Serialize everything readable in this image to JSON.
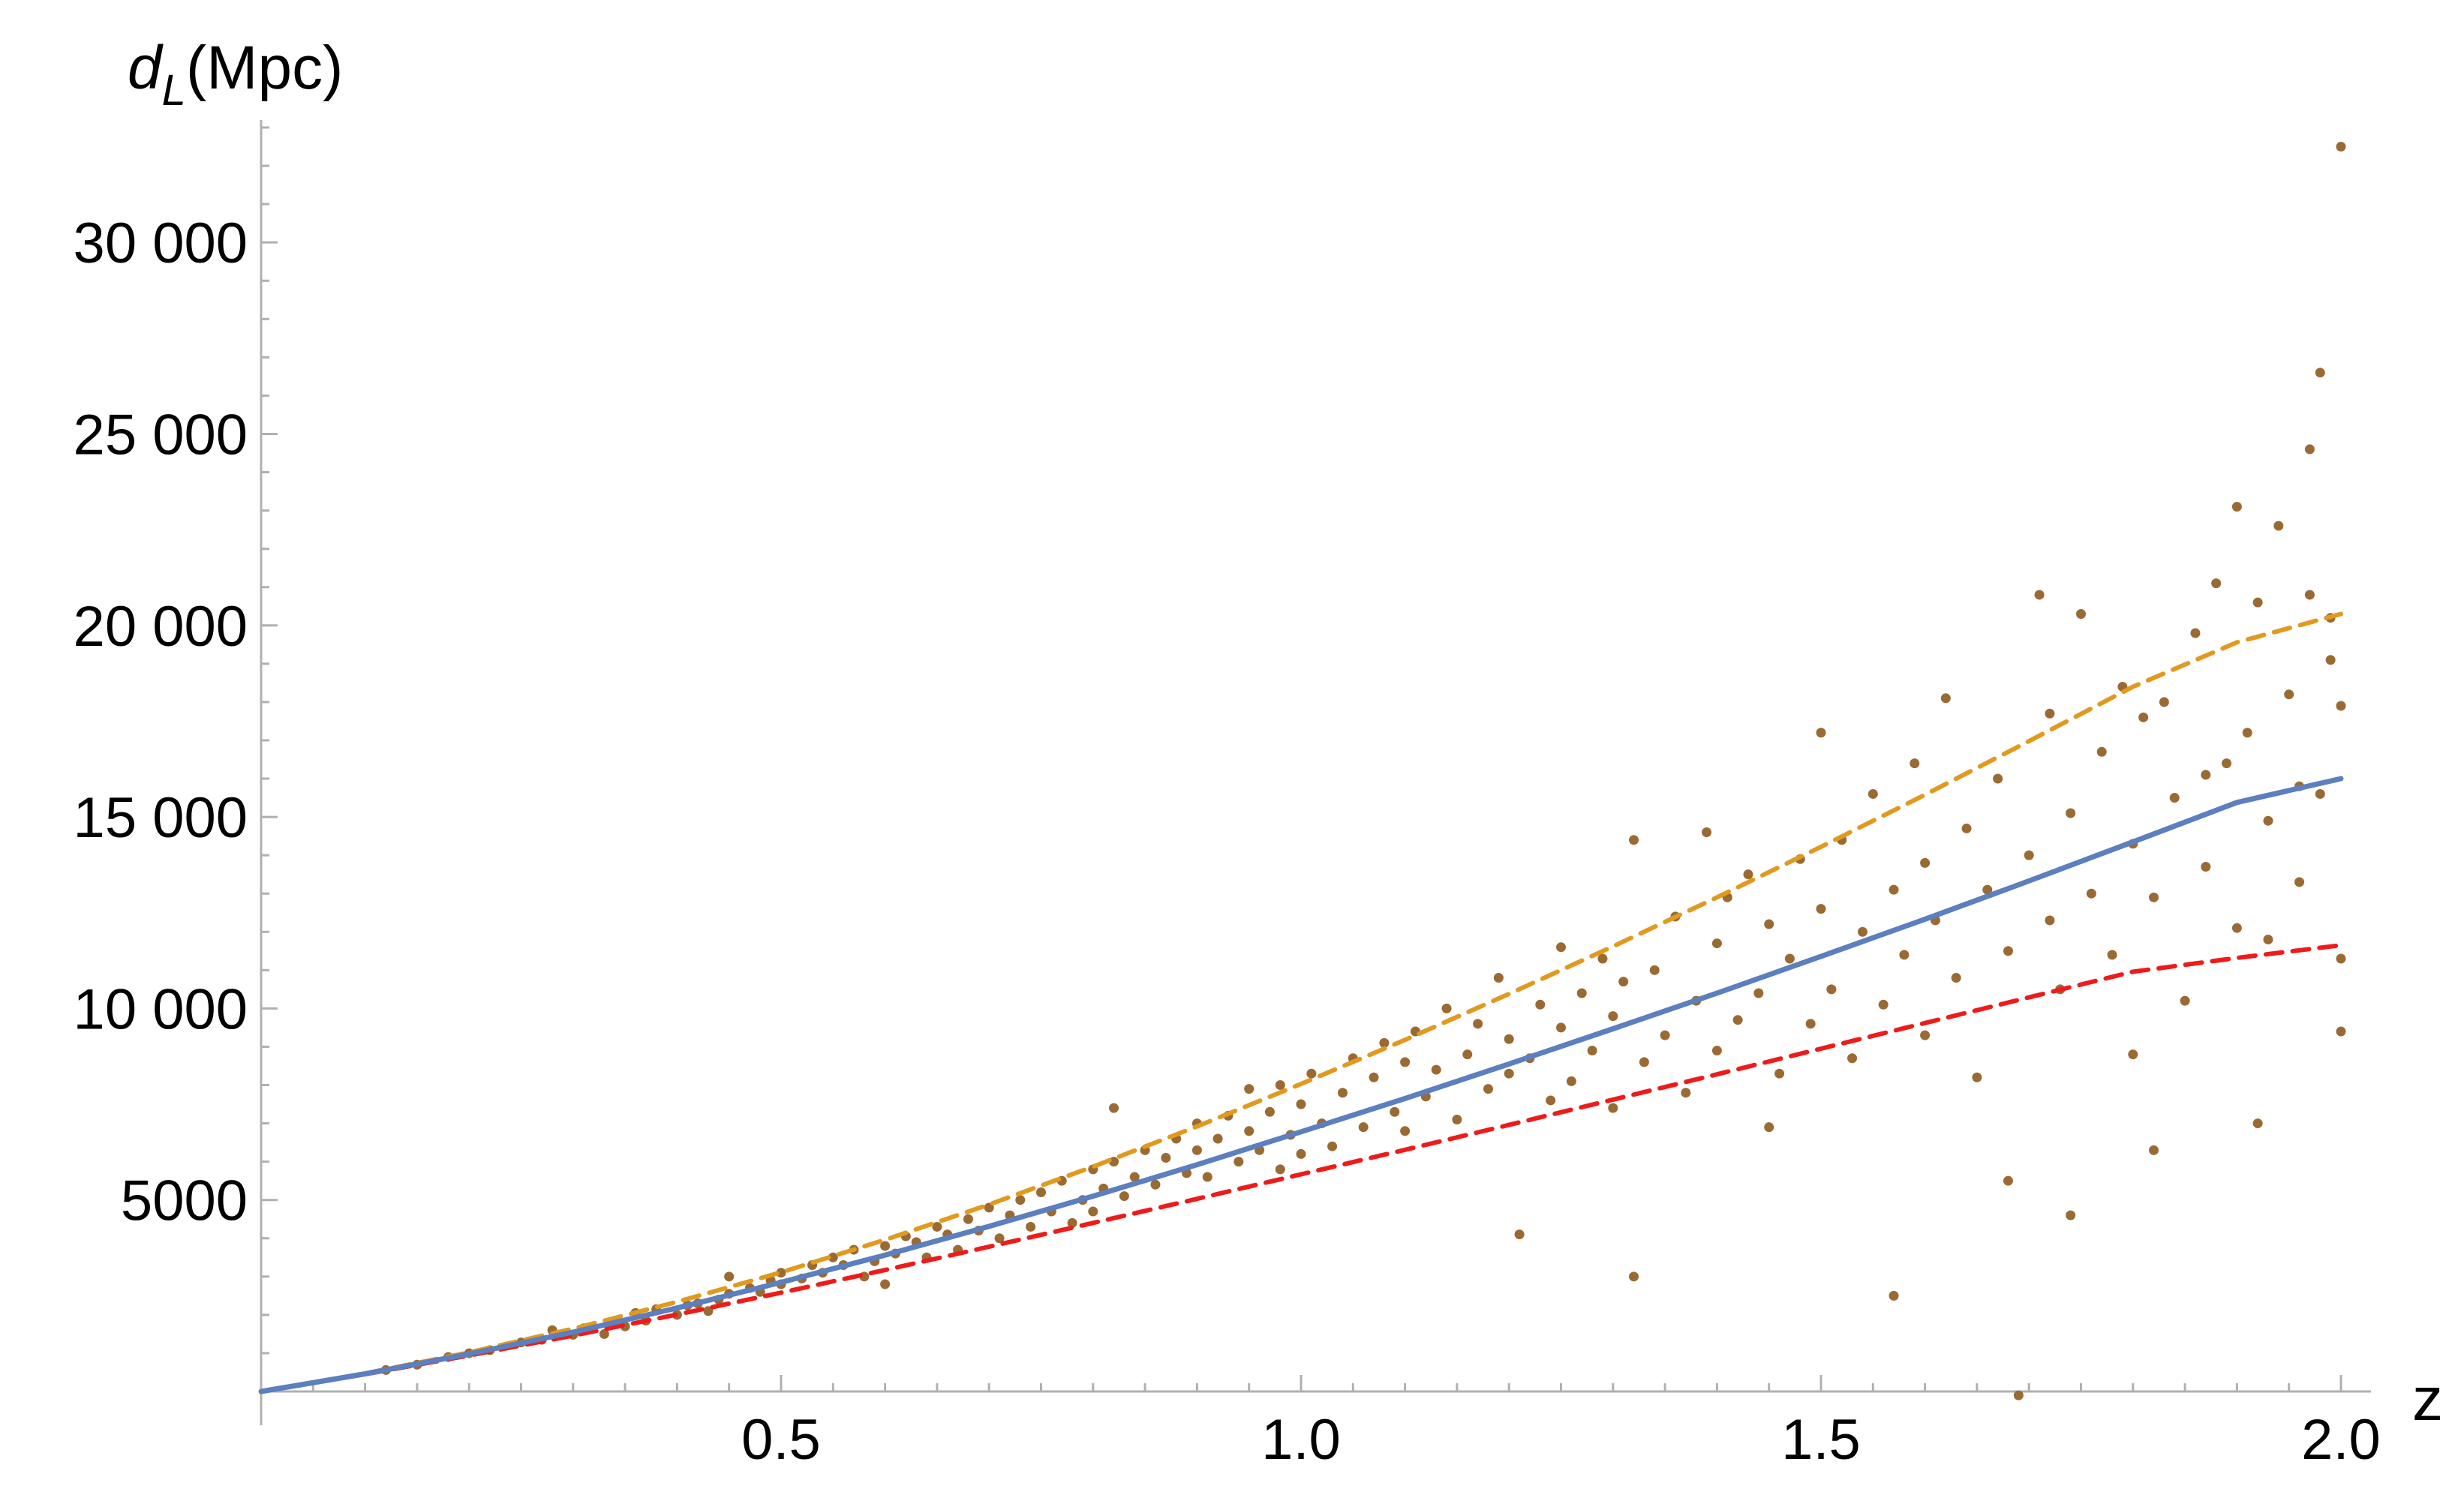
{
  "chart_data": {
    "type": "scatter",
    "xlabel": "z",
    "ylabel_main": "d",
    "ylabel_sub": "L",
    "ylabel_unit": "(Mpc)",
    "xlim": [
      0,
      2.0
    ],
    "ylim": [
      0,
      33000
    ],
    "x_ticks": [
      0.5,
      1.0,
      1.5,
      2.0
    ],
    "x_tick_labels": [
      "0.5",
      "1.0",
      "1.5",
      "2.0"
    ],
    "y_ticks": [
      5000,
      10000,
      15000,
      20000,
      25000,
      30000
    ],
    "y_tick_labels": [
      "5000",
      "10 000",
      "15 000",
      "20 000",
      "25 000",
      "30 000"
    ],
    "grid": false,
    "colors": {
      "scatter": "#9b6a33",
      "model_solid": "#5b7fbf",
      "model_orange": "#e09a1f",
      "model_red": "#ee1b1b",
      "axis": "#b0b0b0"
    },
    "series": [
      {
        "style": "solid",
        "color": "#5b7fbf",
        "x": [
          0,
          0.1,
          0.2,
          0.3,
          0.4,
          0.5,
          0.6,
          0.7,
          0.8,
          0.9,
          1.0,
          1.1,
          1.2,
          1.3,
          1.4,
          1.5,
          1.6,
          1.7,
          1.8,
          1.9,
          2.0
        ],
        "y": [
          0,
          460,
          980,
          1550,
          2180,
          2850,
          3560,
          4310,
          5100,
          5920,
          6780,
          7650,
          8550,
          9470,
          10400,
          11360,
          12330,
          13330,
          14350,
          15380,
          16000
        ]
      },
      {
        "style": "dashed",
        "color": "#e09a1f",
        "x": [
          0,
          0.1,
          0.2,
          0.3,
          0.4,
          0.5,
          0.6,
          0.7,
          0.8,
          0.9,
          1.0,
          1.1,
          1.2,
          1.3,
          1.4,
          1.5,
          1.6,
          1.7,
          1.8,
          1.9,
          2.0
        ],
        "y": [
          0,
          470,
          1020,
          1640,
          2340,
          3110,
          3960,
          4880,
          5870,
          6920,
          8030,
          9180,
          10380,
          11620,
          12900,
          14220,
          15580,
          16980,
          18400,
          19560,
          20300
        ]
      },
      {
        "style": "dashed",
        "color": "#ee1b1b",
        "x": [
          0,
          0.1,
          0.2,
          0.3,
          0.4,
          0.5,
          0.6,
          0.7,
          0.8,
          0.9,
          1.0,
          1.1,
          1.2,
          1.3,
          1.4,
          1.5,
          1.6,
          1.7,
          1.8,
          1.9,
          2.0
        ],
        "y": [
          0,
          450,
          940,
          1460,
          2010,
          2580,
          3170,
          3780,
          4400,
          5030,
          5670,
          6310,
          6960,
          7620,
          8280,
          8950,
          9620,
          10290,
          10960,
          11320,
          11650
        ]
      }
    ],
    "scatter_points": [
      [
        0.12,
        560
      ],
      [
        0.15,
        700
      ],
      [
        0.18,
        900
      ],
      [
        0.2,
        1000
      ],
      [
        0.22,
        1080
      ],
      [
        0.25,
        1280
      ],
      [
        0.27,
        1350
      ],
      [
        0.28,
        1600
      ],
      [
        0.3,
        1480
      ],
      [
        0.31,
        1650
      ],
      [
        0.33,
        1500
      ],
      [
        0.34,
        1820
      ],
      [
        0.35,
        1700
      ],
      [
        0.36,
        2050
      ],
      [
        0.37,
        1850
      ],
      [
        0.38,
        2150
      ],
      [
        0.4,
        2000
      ],
      [
        0.41,
        2250
      ],
      [
        0.42,
        2300
      ],
      [
        0.43,
        2100
      ],
      [
        0.44,
        2400
      ],
      [
        0.45,
        2550
      ],
      [
        0.45,
        3000
      ],
      [
        0.47,
        2700
      ],
      [
        0.48,
        2600
      ],
      [
        0.49,
        2900
      ],
      [
        0.5,
        2800
      ],
      [
        0.5,
        3100
      ],
      [
        0.52,
        2950
      ],
      [
        0.53,
        3300
      ],
      [
        0.54,
        3100
      ],
      [
        0.55,
        3500
      ],
      [
        0.56,
        3300
      ],
      [
        0.57,
        3700
      ],
      [
        0.58,
        3000
      ],
      [
        0.59,
        3400
      ],
      [
        0.6,
        2800
      ],
      [
        0.6,
        3800
      ],
      [
        0.61,
        3600
      ],
      [
        0.62,
        4050
      ],
      [
        0.63,
        3900
      ],
      [
        0.64,
        3500
      ],
      [
        0.65,
        4300
      ],
      [
        0.66,
        4100
      ],
      [
        0.67,
        3700
      ],
      [
        0.68,
        4500
      ],
      [
        0.69,
        4200
      ],
      [
        0.7,
        4800
      ],
      [
        0.71,
        4000
      ],
      [
        0.72,
        4600
      ],
      [
        0.73,
        5000
      ],
      [
        0.74,
        4300
      ],
      [
        0.75,
        5200
      ],
      [
        0.76,
        4700
      ],
      [
        0.77,
        5500
      ],
      [
        0.78,
        4400
      ],
      [
        0.79,
        5000
      ],
      [
        0.8,
        5800
      ],
      [
        0.8,
        4700
      ],
      [
        0.81,
        5300
      ],
      [
        0.82,
        6000
      ],
      [
        0.82,
        7400
      ],
      [
        0.83,
        5100
      ],
      [
        0.84,
        5600
      ],
      [
        0.85,
        6300
      ],
      [
        0.86,
        5400
      ],
      [
        0.87,
        6100
      ],
      [
        0.88,
        6600
      ],
      [
        0.89,
        5700
      ],
      [
        0.9,
        6300
      ],
      [
        0.9,
        7000
      ],
      [
        0.91,
        5600
      ],
      [
        0.92,
        6600
      ],
      [
        0.93,
        7200
      ],
      [
        0.94,
        6000
      ],
      [
        0.95,
        6800
      ],
      [
        0.95,
        7900
      ],
      [
        0.96,
        6300
      ],
      [
        0.97,
        7300
      ],
      [
        0.98,
        5800
      ],
      [
        0.98,
        8000
      ],
      [
        0.99,
        6700
      ],
      [
        1.0,
        7500
      ],
      [
        1.0,
        6200
      ],
      [
        1.01,
        8300
      ],
      [
        1.02,
        7000
      ],
      [
        1.03,
        6400
      ],
      [
        1.04,
        7800
      ],
      [
        1.05,
        8700
      ],
      [
        1.06,
        6900
      ],
      [
        1.07,
        8200
      ],
      [
        1.08,
        9100
      ],
      [
        1.09,
        7300
      ],
      [
        1.1,
        8600
      ],
      [
        1.1,
        6800
      ],
      [
        1.11,
        9400
      ],
      [
        1.12,
        7700
      ],
      [
        1.13,
        8400
      ],
      [
        1.14,
        10000
      ],
      [
        1.15,
        7100
      ],
      [
        1.16,
        8800
      ],
      [
        1.17,
        9600
      ],
      [
        1.18,
        7900
      ],
      [
        1.19,
        10800
      ],
      [
        1.2,
        8300
      ],
      [
        1.2,
        9200
      ],
      [
        1.21,
        4100
      ],
      [
        1.22,
        8700
      ],
      [
        1.23,
        10100
      ],
      [
        1.24,
        7600
      ],
      [
        1.25,
        9500
      ],
      [
        1.25,
        11600
      ],
      [
        1.26,
        8100
      ],
      [
        1.27,
        10400
      ],
      [
        1.28,
        8900
      ],
      [
        1.29,
        11300
      ],
      [
        1.3,
        9800
      ],
      [
        1.3,
        7400
      ],
      [
        1.31,
        10700
      ],
      [
        1.32,
        3000
      ],
      [
        1.32,
        14400
      ],
      [
        1.33,
        8600
      ],
      [
        1.34,
        11000
      ],
      [
        1.35,
        9300
      ],
      [
        1.36,
        12400
      ],
      [
        1.37,
        7800
      ],
      [
        1.38,
        10200
      ],
      [
        1.39,
        14600
      ],
      [
        1.4,
        11700
      ],
      [
        1.4,
        8900
      ],
      [
        1.41,
        12900
      ],
      [
        1.42,
        9700
      ],
      [
        1.43,
        13500
      ],
      [
        1.44,
        10400
      ],
      [
        1.45,
        6900
      ],
      [
        1.45,
        12200
      ],
      [
        1.46,
        8300
      ],
      [
        1.47,
        11300
      ],
      [
        1.48,
        13900
      ],
      [
        1.49,
        9600
      ],
      [
        1.5,
        12600
      ],
      [
        1.5,
        17200
      ],
      [
        1.51,
        10500
      ],
      [
        1.52,
        14400
      ],
      [
        1.53,
        8700
      ],
      [
        1.54,
        12000
      ],
      [
        1.55,
        15600
      ],
      [
        1.56,
        10100
      ],
      [
        1.57,
        2500
      ],
      [
        1.57,
        13100
      ],
      [
        1.58,
        11400
      ],
      [
        1.59,
        16400
      ],
      [
        1.6,
        9300
      ],
      [
        1.6,
        13800
      ],
      [
        1.61,
        12300
      ],
      [
        1.62,
        18100
      ],
      [
        1.63,
        10800
      ],
      [
        1.64,
        14700
      ],
      [
        1.65,
        8200
      ],
      [
        1.66,
        13100
      ],
      [
        1.67,
        16000
      ],
      [
        1.68,
        11500
      ],
      [
        1.68,
        5500
      ],
      [
        1.69,
        -100
      ],
      [
        1.7,
        14000
      ],
      [
        1.71,
        20800
      ],
      [
        1.72,
        12300
      ],
      [
        1.72,
        17700
      ],
      [
        1.73,
        10500
      ],
      [
        1.74,
        4600
      ],
      [
        1.74,
        15100
      ],
      [
        1.75,
        20300
      ],
      [
        1.76,
        13000
      ],
      [
        1.77,
        16700
      ],
      [
        1.78,
        11400
      ],
      [
        1.79,
        18400
      ],
      [
        1.8,
        14300
      ],
      [
        1.8,
        8800
      ],
      [
        1.81,
        17600
      ],
      [
        1.82,
        6300
      ],
      [
        1.82,
        12900
      ],
      [
        1.83,
        18000
      ],
      [
        1.84,
        15500
      ],
      [
        1.85,
        10200
      ],
      [
        1.86,
        19800
      ],
      [
        1.87,
        13700
      ],
      [
        1.88,
        21100
      ],
      [
        1.89,
        16400
      ],
      [
        1.9,
        12100
      ],
      [
        1.9,
        23100
      ],
      [
        1.91,
        17200
      ],
      [
        1.92,
        7000
      ],
      [
        1.92,
        20600
      ],
      [
        1.93,
        14900
      ],
      [
        1.94,
        22600
      ],
      [
        1.95,
        18200
      ],
      [
        1.96,
        13300
      ],
      [
        1.97,
        20800
      ],
      [
        1.97,
        24600
      ],
      [
        1.98,
        26600
      ],
      [
        1.98,
        15600
      ],
      [
        1.99,
        19100
      ],
      [
        2.0,
        32500
      ],
      [
        2.0,
        17900
      ],
      [
        2.0,
        11300
      ],
      [
        2.0,
        9400
      ],
      [
        1.99,
        20200
      ],
      [
        1.96,
        15800
      ],
      [
        1.93,
        11800
      ],
      [
        1.87,
        16100
      ]
    ]
  }
}
